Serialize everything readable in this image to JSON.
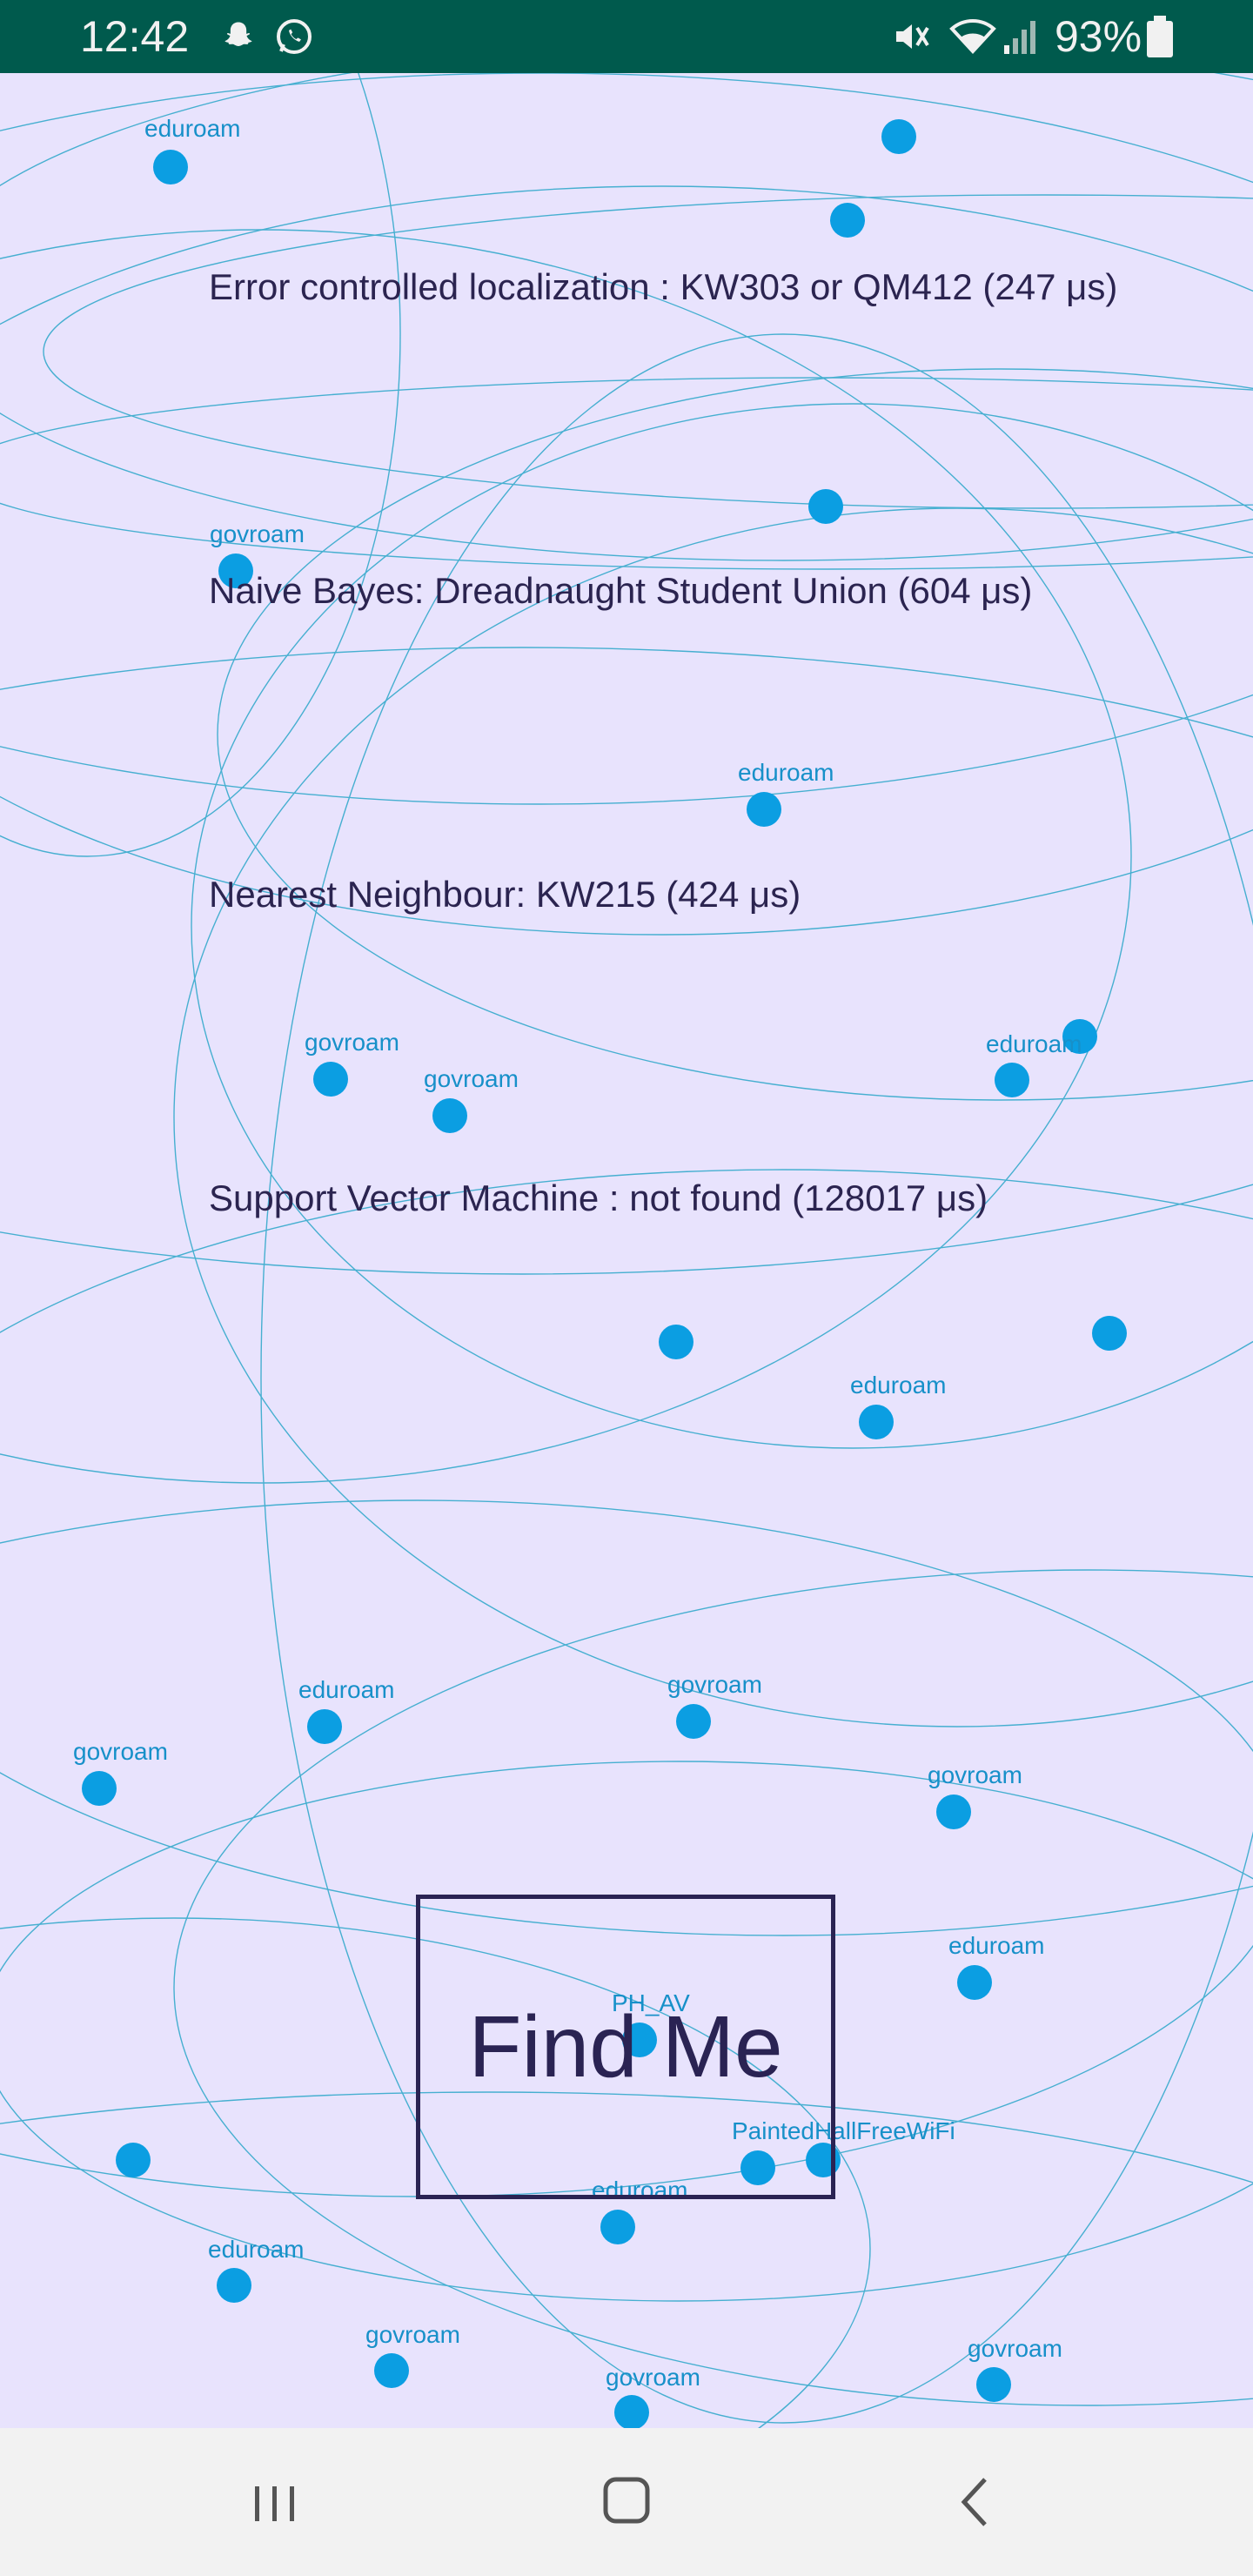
{
  "status_bar": {
    "time": "12:42",
    "battery": "93%",
    "icons": [
      "snapchat-icon",
      "whatsapp-icon",
      "mute-icon",
      "wifi-icon",
      "signal-icon",
      "battery-icon"
    ]
  },
  "results": {
    "error_controlled": "Error controlled localization : KW303 or QM412 (247 μs)",
    "naive_bayes": "Naive Bayes: Dreadnaught Student Union (604 μs)",
    "nearest_neighbour": "Nearest Neighbour: KW215 (424 μs)",
    "svm": "Support Vector Machine : not found (128017 μs)"
  },
  "access_points": [
    {
      "label": "eduroam"
    },
    {
      "label": ""
    },
    {
      "label": ""
    },
    {
      "label": ""
    },
    {
      "label": "govroam"
    },
    {
      "label": "eduroam"
    },
    {
      "label": ""
    },
    {
      "label": "govroam"
    },
    {
      "label": "govroam"
    },
    {
      "label": "eduroam"
    },
    {
      "label": ""
    },
    {
      "label": ""
    },
    {
      "label": "eduroam"
    },
    {
      "label": "eduroam"
    },
    {
      "label": "govroam"
    },
    {
      "label": "govroam"
    },
    {
      "label": "govroam"
    },
    {
      "label": "eduroam"
    },
    {
      "label": "PH_AV"
    },
    {
      "label": "PaintedHallFreeWiFi"
    },
    {
      "label": ""
    },
    {
      "label": ""
    },
    {
      "label": "eduroam"
    },
    {
      "label": "eduroam"
    },
    {
      "label": "govroam"
    },
    {
      "label": "govroam"
    },
    {
      "label": "govroam"
    }
  ],
  "find_me_button": "Find Me",
  "colors": {
    "status_bar": "#005a4d",
    "background": "#e8e3fd",
    "dot": "#0b9ee2",
    "label": "#1790c9",
    "text": "#2b2450"
  },
  "nav_bar": {
    "icons": [
      "recent-apps-icon",
      "home-icon",
      "back-icon"
    ]
  }
}
